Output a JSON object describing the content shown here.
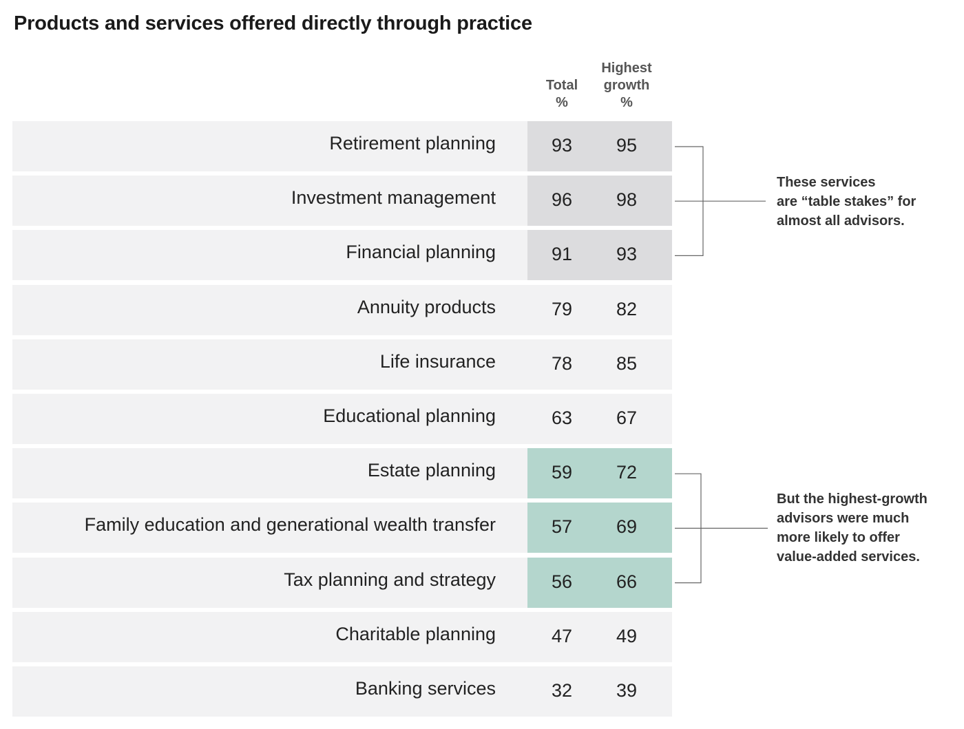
{
  "chart_data": {
    "type": "table",
    "title": "Products and services offered directly through practice",
    "columns": [
      [
        "Total",
        "%"
      ],
      [
        "Highest",
        "growth",
        "%"
      ]
    ],
    "rows": [
      {
        "label": "Retirement planning",
        "total": 93,
        "highest_growth": 95,
        "highlight": "gray"
      },
      {
        "label": "Investment management",
        "total": 96,
        "highest_growth": 98,
        "highlight": "gray"
      },
      {
        "label": "Financial planning",
        "total": 91,
        "highest_growth": 93,
        "highlight": "gray"
      },
      {
        "label": "Annuity products",
        "total": 79,
        "highest_growth": 82,
        "highlight": "none"
      },
      {
        "label": "Life insurance",
        "total": 78,
        "highest_growth": 85,
        "highlight": "none"
      },
      {
        "label": "Educational planning",
        "total": 63,
        "highest_growth": 67,
        "highlight": "none"
      },
      {
        "label": "Estate planning",
        "total": 59,
        "highest_growth": 72,
        "highlight": "green"
      },
      {
        "label": "Family education and generational wealth transfer",
        "total": 57,
        "highest_growth": 69,
        "highlight": "green"
      },
      {
        "label": "Tax planning and strategy",
        "total": 56,
        "highest_growth": 66,
        "highlight": "green"
      },
      {
        "label": "Charitable planning",
        "total": 47,
        "highest_growth": 49,
        "highlight": "none"
      },
      {
        "label": "Banking services",
        "total": 32,
        "highest_growth": 39,
        "highlight": "none"
      }
    ],
    "annotations": [
      {
        "lines": [
          "These services",
          "are “table stakes” for",
          "almost all advisors."
        ],
        "first_row": 0,
        "last_row": 2
      },
      {
        "lines": [
          "But the highest-growth",
          "advisors were much",
          "more likely to offer",
          "value-added services."
        ],
        "first_row": 6,
        "last_row": 8
      }
    ],
    "colors": {
      "row_background": "#f2f2f3",
      "highlight_gray": "#dcdcde",
      "highlight_green": "#b4d6cd",
      "bracket_line": "#666666"
    }
  }
}
